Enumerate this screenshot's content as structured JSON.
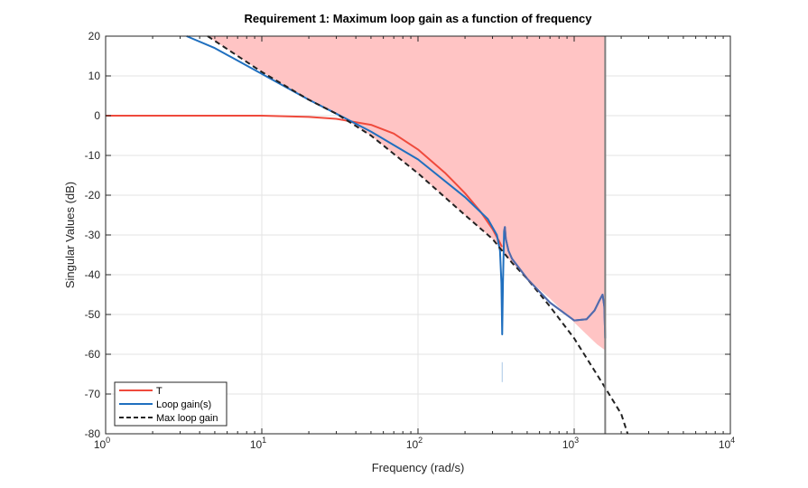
{
  "chart_data": {
    "type": "line",
    "title": "Requirement 1: Maximum loop gain as a function of frequency",
    "xlabel": "Frequency (rad/s)",
    "ylabel": "Singular Values (dB)",
    "xscale": "log",
    "xlim": [
      1,
      10000
    ],
    "ylim": [
      -80,
      20
    ],
    "x_ticks": [
      {
        "value": 1,
        "base": "10",
        "exp": "0"
      },
      {
        "value": 10,
        "base": "10",
        "exp": "1"
      },
      {
        "value": 100,
        "base": "10",
        "exp": "2"
      },
      {
        "value": 1000,
        "base": "10",
        "exp": "3"
      },
      {
        "value": 10000,
        "base": "10",
        "exp": "4"
      }
    ],
    "y_ticks": [
      {
        "value": 20,
        "label": "20"
      },
      {
        "value": 10,
        "label": "10"
      },
      {
        "value": 0,
        "label": "0"
      },
      {
        "value": -10,
        "label": "-10"
      },
      {
        "value": -20,
        "label": "-20"
      },
      {
        "value": -30,
        "label": "-30"
      },
      {
        "value": -40,
        "label": "-40"
      },
      {
        "value": -50,
        "label": "-50"
      },
      {
        "value": -60,
        "label": "-60"
      },
      {
        "value": -70,
        "label": "-70"
      },
      {
        "value": -80,
        "label": "-80"
      }
    ],
    "grid": true,
    "colors": {
      "T": "#ef4a3c",
      "loop": "#1f6fbf",
      "max": "#222222",
      "region_fill": "#ffc4c4",
      "limit_line": "#7f7f7f",
      "grid": "#e3e3e3",
      "overlap": "#5a6aa8"
    },
    "region": {
      "name": "Violation region",
      "upper_db": 20,
      "lower_boundary": [
        [
          4.5,
          20
        ],
        [
          10,
          11
        ],
        [
          20,
          4
        ],
        [
          30,
          0.5
        ],
        [
          50,
          -5
        ],
        [
          100,
          -14.5
        ],
        [
          200,
          -25
        ],
        [
          300,
          -31
        ],
        [
          400,
          -37
        ],
        [
          500,
          -41
        ],
        [
          700,
          -46
        ],
        [
          1000,
          -52
        ],
        [
          1200,
          -55
        ],
        [
          1400,
          -57.5
        ],
        [
          1580,
          -59
        ]
      ],
      "right_limit": 1580
    },
    "series": [
      {
        "name": "T",
        "points": [
          [
            1,
            0
          ],
          [
            3,
            0
          ],
          [
            10,
            0
          ],
          [
            20,
            -0.3
          ],
          [
            30,
            -0.8
          ],
          [
            50,
            -2.3
          ],
          [
            70,
            -4.5
          ],
          [
            100,
            -8.5
          ],
          [
            150,
            -14.5
          ],
          [
            200,
            -19.5
          ],
          [
            250,
            -24
          ],
          [
            300,
            -28.5
          ],
          [
            330,
            -31.5
          ],
          [
            345,
            -33
          ]
        ]
      },
      {
        "name": "Loop gain(s)",
        "points": [
          [
            3.3,
            20
          ],
          [
            5,
            17
          ],
          [
            10,
            10.5
          ],
          [
            20,
            4
          ],
          [
            30,
            0.5
          ],
          [
            50,
            -4
          ],
          [
            100,
            -11
          ],
          [
            200,
            -20.5
          ],
          [
            280,
            -26
          ],
          [
            320,
            -30
          ],
          [
            335,
            -34
          ],
          [
            342,
            -42
          ],
          [
            346,
            -55
          ],
          [
            350,
            -42
          ],
          [
            356,
            -29
          ],
          [
            360,
            -28
          ],
          [
            365,
            -31
          ],
          [
            380,
            -34
          ],
          [
            400,
            -36
          ],
          [
            500,
            -41
          ],
          [
            700,
            -47
          ],
          [
            1000,
            -51.5
          ],
          [
            1200,
            -51.2
          ],
          [
            1350,
            -49
          ],
          [
            1450,
            -46.5
          ],
          [
            1520,
            -45
          ],
          [
            1560,
            -48
          ],
          [
            1580,
            -56
          ]
        ]
      },
      {
        "name": "Max loop gain",
        "points": [
          [
            4.5,
            20
          ],
          [
            10,
            11
          ],
          [
            20,
            4
          ],
          [
            30,
            0.5
          ],
          [
            50,
            -5
          ],
          [
            100,
            -14.5
          ],
          [
            200,
            -25
          ],
          [
            300,
            -31
          ],
          [
            400,
            -37
          ],
          [
            500,
            -41
          ],
          [
            700,
            -48
          ],
          [
            1000,
            -56
          ],
          [
            1500,
            -67
          ],
          [
            2000,
            -75
          ],
          [
            2200,
            -80
          ]
        ]
      }
    ],
    "legend": {
      "position": "bottom-left",
      "entries": [
        "T",
        "Loop gain(s)",
        "Max loop gain"
      ]
    }
  }
}
